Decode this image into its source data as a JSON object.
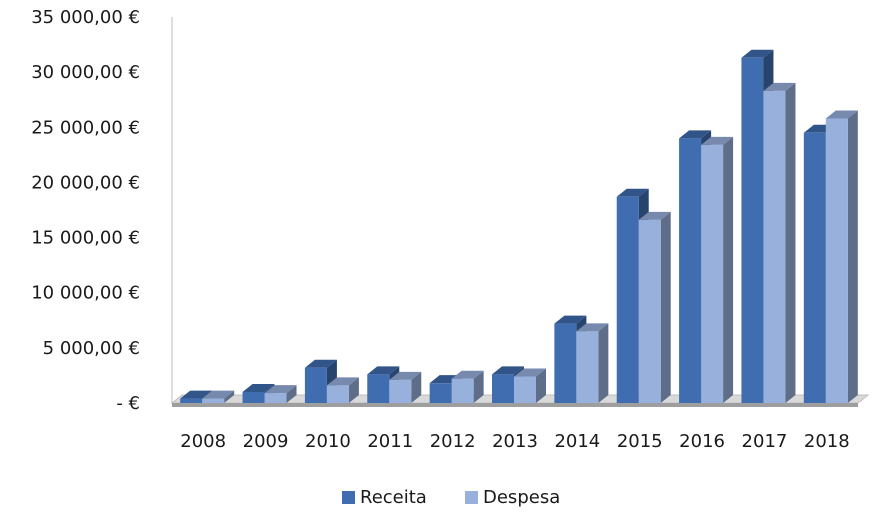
{
  "chart_data": {
    "type": "bar",
    "style": "3d-clustered-column",
    "title": "",
    "xlabel": "",
    "ylabel": "",
    "categories": [
      "2008",
      "2009",
      "2010",
      "2011",
      "2012",
      "2013",
      "2014",
      "2015",
      "2016",
      "2017",
      "2018"
    ],
    "series": [
      {
        "name": "Receita",
        "color": "#3F6DAF",
        "values": [
          400,
          1000,
          3200,
          2600,
          1800,
          2600,
          7200,
          18700,
          24000,
          31300,
          24500
        ]
      },
      {
        "name": "Despesa",
        "color": "#98B0DC",
        "values": [
          400,
          900,
          1600,
          2100,
          2200,
          2400,
          6500,
          16600,
          23400,
          28300,
          25800
        ]
      }
    ],
    "ylim": [
      0,
      35000
    ],
    "yticks": [
      0,
      5000,
      10000,
      15000,
      20000,
      25000,
      30000,
      35000
    ],
    "ytick_labels": [
      "-  €",
      "5 000,00 €",
      "10 000,00 €",
      "15 000,00 €",
      "20 000,00 €",
      "25 000,00 €",
      "30 000,00 €",
      "35 000,00 €"
    ],
    "grid": false,
    "legend": {
      "position": "bottom",
      "entries": [
        "Receita",
        "Despesa"
      ]
    }
  }
}
